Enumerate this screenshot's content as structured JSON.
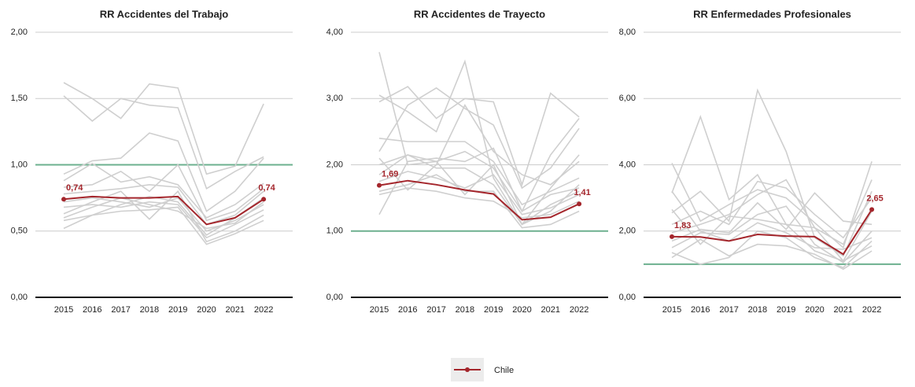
{
  "chart_data": [
    {
      "type": "line",
      "title": "RR Accidentes del Trabajo",
      "categories": [
        "2015",
        "2016",
        "2017",
        "2018",
        "2019",
        "2020",
        "2021",
        "2022"
      ],
      "ylim": [
        0,
        2
      ],
      "yticks": [
        {
          "value": 0,
          "label": "0,00"
        },
        {
          "value": 0.5,
          "label": "0,50"
        },
        {
          "value": 1,
          "label": "1,00"
        },
        {
          "value": 1.5,
          "label": "1,50"
        },
        {
          "value": 2,
          "label": "2,00"
        }
      ],
      "grid": true,
      "reference_line": 1,
      "reference_color": "#6db08f",
      "series": [
        {
          "color": "#cfcfcf",
          "values": [
            1.62,
            1.5,
            1.35,
            1.61,
            1.58,
            0.93,
            0.99,
            1.46
          ]
        },
        {
          "color": "#cfcfcf",
          "values": [
            1.52,
            1.33,
            1.5,
            1.45,
            1.43,
            0.82,
            0.95,
            1.06
          ]
        },
        {
          "color": "#cfcfcf",
          "values": [
            0.93,
            1.03,
            1.05,
            1.24,
            1.18,
            0.65,
            0.8,
            1.05
          ]
        },
        {
          "color": "#cfcfcf",
          "values": [
            0.88,
            1.01,
            0.87,
            0.91,
            0.85,
            0.6,
            0.7,
            0.86
          ]
        },
        {
          "color": "#cfcfcf",
          "values": [
            0.83,
            0.85,
            0.95,
            0.8,
            1.0,
            0.58,
            0.65,
            0.82
          ]
        },
        {
          "color": "#cfcfcf",
          "values": [
            0.78,
            0.8,
            0.82,
            0.85,
            0.83,
            0.55,
            0.62,
            0.8
          ]
        },
        {
          "color": "#cfcfcf",
          "values": [
            0.72,
            0.75,
            0.72,
            0.68,
            0.75,
            0.5,
            0.58,
            0.7
          ]
        },
        {
          "color": "#cfcfcf",
          "values": [
            0.68,
            0.7,
            0.68,
            0.72,
            0.7,
            0.45,
            0.55,
            0.66
          ]
        },
        {
          "color": "#cfcfcf",
          "values": [
            0.63,
            0.72,
            0.8,
            0.59,
            0.8,
            0.42,
            0.5,
            0.62
          ]
        },
        {
          "color": "#cfcfcf",
          "values": [
            0.58,
            0.62,
            0.65,
            0.66,
            0.68,
            0.4,
            0.48,
            0.58
          ]
        },
        {
          "color": "#cfcfcf",
          "values": [
            0.52,
            0.62,
            0.7,
            0.76,
            0.72,
            0.47,
            0.6,
            0.75
          ]
        },
        {
          "color": "#cfcfcf",
          "values": [
            0.6,
            0.68,
            0.75,
            0.7,
            0.65,
            0.52,
            0.56,
            0.72
          ]
        },
        {
          "name": "Chile",
          "color": "#a4262c",
          "values": [
            0.74,
            0.76,
            0.75,
            0.75,
            0.76,
            0.55,
            0.6,
            0.74
          ],
          "value_labels": [
            "0,74",
            null,
            null,
            null,
            null,
            null,
            null,
            "0,74"
          ]
        }
      ]
    },
    {
      "type": "line",
      "title": "RR Accidentes de Trayecto",
      "categories": [
        "2015",
        "2016",
        "2017",
        "2018",
        "2019",
        "2020",
        "2021",
        "2022"
      ],
      "ylim": [
        0,
        4
      ],
      "yticks": [
        {
          "value": 0,
          "label": "0,00"
        },
        {
          "value": 1,
          "label": "1,00"
        },
        {
          "value": 2,
          "label": "2,00"
        },
        {
          "value": 3,
          "label": "3,00"
        },
        {
          "value": 4,
          "label": "4,00"
        }
      ],
      "grid": true,
      "reference_line": 1,
      "reference_color": "#6db08f",
      "series": [
        {
          "color": "#cfcfcf",
          "values": [
            3.7,
            2.0,
            2.05,
            1.55,
            2.0,
            1.1,
            1.3,
            1.7
          ]
        },
        {
          "color": "#cfcfcf",
          "values": [
            3.05,
            2.8,
            2.5,
            3.56,
            1.8,
            1.1,
            1.65,
            2.15
          ]
        },
        {
          "color": "#cfcfcf",
          "values": [
            2.95,
            3.18,
            2.7,
            3.0,
            2.95,
            1.7,
            3.08,
            2.72
          ]
        },
        {
          "color": "#cfcfcf",
          "values": [
            2.2,
            2.9,
            3.16,
            2.85,
            2.6,
            1.65,
            1.95,
            2.55
          ]
        },
        {
          "color": "#cfcfcf",
          "values": [
            2.4,
            2.35,
            2.35,
            2.35,
            2.05,
            1.4,
            1.6,
            1.8
          ]
        },
        {
          "color": "#cfcfcf",
          "values": [
            1.25,
            2.05,
            2.1,
            2.05,
            2.25,
            1.3,
            2.15,
            2.7
          ]
        },
        {
          "color": "#cfcfcf",
          "values": [
            2.1,
            1.62,
            2.0,
            2.9,
            2.2,
            1.85,
            1.7,
            2.05
          ]
        },
        {
          "color": "#cfcfcf",
          "values": [
            1.85,
            2.15,
            1.95,
            1.95,
            1.7,
            1.1,
            1.4,
            1.6
          ]
        },
        {
          "color": "#cfcfcf",
          "values": [
            1.75,
            1.9,
            1.8,
            1.65,
            1.85,
            1.25,
            1.35,
            1.55
          ]
        },
        {
          "color": "#cfcfcf",
          "values": [
            1.6,
            1.7,
            1.85,
            1.6,
            1.6,
            1.05,
            1.1,
            1.3
          ]
        },
        {
          "color": "#cfcfcf",
          "values": [
            1.55,
            1.65,
            1.6,
            1.5,
            1.45,
            1.2,
            1.25,
            1.45
          ]
        },
        {
          "color": "#cfcfcf",
          "values": [
            2.0,
            2.15,
            2.05,
            2.2,
            1.95,
            1.3,
            1.55,
            1.65
          ]
        },
        {
          "color": "#a4262c",
          "values": [
            1.69,
            1.76,
            1.7,
            1.62,
            1.56,
            1.17,
            1.21,
            1.41
          ],
          "value_labels": [
            "1,69",
            null,
            null,
            null,
            null,
            null,
            null,
            "1,41"
          ]
        }
      ]
    },
    {
      "type": "line",
      "title": "RR Enfermedades Profesionales",
      "categories": [
        "2015",
        "2016",
        "2017",
        "2018",
        "2019",
        "2020",
        "2021",
        "2022"
      ],
      "ylim": [
        0,
        8
      ],
      "yticks": [
        {
          "value": 0,
          "label": "0,00"
        },
        {
          "value": 2,
          "label": "2,00"
        },
        {
          "value": 4,
          "label": "4,00"
        },
        {
          "value": 6,
          "label": "6,00"
        },
        {
          "value": 8,
          "label": "8,00"
        }
      ],
      "grid": true,
      "reference_line": 1,
      "reference_color": "#6db08f",
      "series": [
        {
          "color": "#cfcfcf",
          "values": [
            4.05,
            2.3,
            2.8,
            3.25,
            3.0,
            2.25,
            1.5,
            4.1
          ]
        },
        {
          "color": "#cfcfcf",
          "values": [
            3.15,
            5.45,
            2.95,
            3.7,
            2.2,
            2.1,
            1.6,
            3.55
          ]
        },
        {
          "color": "#cfcfcf",
          "values": [
            2.55,
            3.2,
            2.3,
            6.25,
            4.4,
            1.8,
            1.25,
            3.2
          ]
        },
        {
          "color": "#cfcfcf",
          "values": [
            2.2,
            2.6,
            2.2,
            3.5,
            3.3,
            2.5,
            1.8,
            3.0
          ]
        },
        {
          "color": "#cfcfcf",
          "values": [
            1.95,
            2.2,
            2.5,
            3.1,
            3.55,
            2.1,
            1.1,
            2.6
          ]
        },
        {
          "color": "#cfcfcf",
          "values": [
            1.7,
            2.05,
            1.95,
            2.85,
            2.05,
            3.15,
            2.3,
            2.2
          ]
        },
        {
          "color": "#cfcfcf",
          "values": [
            1.5,
            1.95,
            1.9,
            2.5,
            2.75,
            1.6,
            1.05,
            2.0
          ]
        },
        {
          "color": "#cfcfcf",
          "values": [
            1.35,
            1.0,
            1.2,
            2.0,
            1.8,
            1.2,
            0.9,
            1.7
          ]
        },
        {
          "color": "#cfcfcf",
          "values": [
            1.2,
            1.75,
            1.25,
            1.6,
            1.55,
            1.3,
            0.85,
            1.4
          ]
        },
        {
          "color": "#cfcfcf",
          "values": [
            3.2,
            2.0,
            1.7,
            2.25,
            1.95,
            1.5,
            1.45,
            1.8
          ]
        },
        {
          "color": "#cfcfcf",
          "values": [
            2.65,
            1.6,
            2.45,
            2.35,
            2.2,
            1.4,
            1.1,
            1.55
          ]
        },
        {
          "color": "#a4262c",
          "values": [
            1.83,
            1.82,
            1.7,
            1.9,
            1.85,
            1.83,
            1.3,
            2.65
          ],
          "value_labels": [
            "1,83",
            null,
            null,
            null,
            null,
            null,
            null,
            "2,65"
          ]
        }
      ]
    }
  ]
}
